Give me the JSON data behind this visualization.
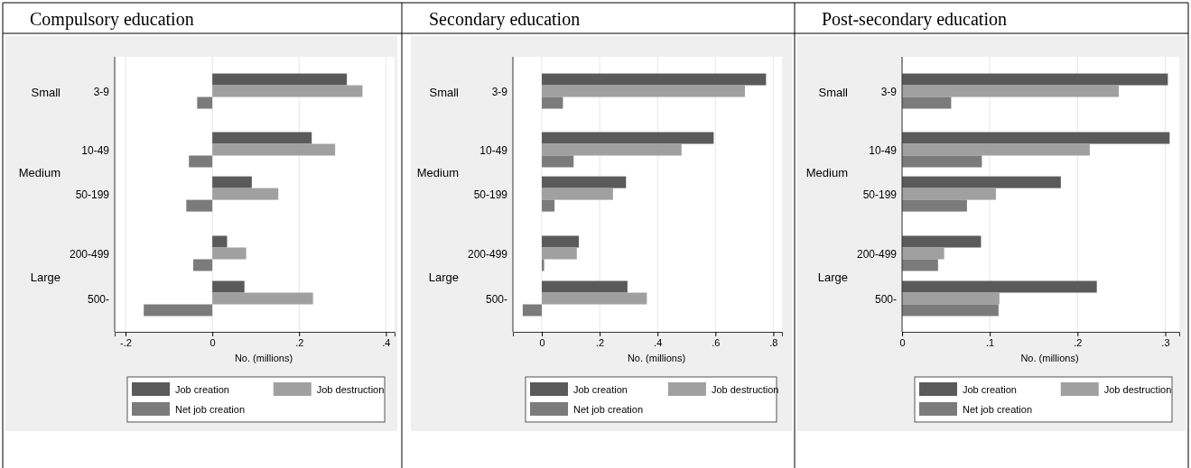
{
  "chart_data": [
    {
      "type": "bar",
      "orientation": "horizontal",
      "title": "Compulsory education",
      "xlabel": "No. (millions)",
      "categories": [
        "3-9",
        "10-49",
        "50-199",
        "200-499",
        "500-"
      ],
      "annotations": [
        "Small",
        "Medium",
        "Large"
      ],
      "xlim": [
        -0.225,
        0.42
      ],
      "xticks": [
        {
          "value": -0.2,
          "label": "-.2"
        },
        {
          "value": 0,
          "label": "0"
        },
        {
          "value": 0.2,
          "label": ".2"
        },
        {
          "value": 0.4,
          "label": ".4"
        }
      ],
      "grid": "x",
      "legend": "bottom",
      "series": [
        {
          "name": "Job creation",
          "color": "#5a5a5a",
          "values": [
            0.31,
            0.229,
            0.091,
            0.034,
            0.074
          ]
        },
        {
          "name": "Job destruction",
          "color": "#a0a0a0",
          "values": [
            0.346,
            0.283,
            0.152,
            0.078,
            0.232
          ]
        },
        {
          "name": "Net job creation",
          "color": "#7b7b7b",
          "values": [
            -0.035,
            -0.054,
            -0.06,
            -0.044,
            -0.158
          ]
        }
      ]
    },
    {
      "type": "bar",
      "orientation": "horizontal",
      "title": "Secondary education",
      "xlabel": "No. (millions)",
      "categories": [
        "3-9",
        "10-49",
        "50-199",
        "200-499",
        "500-"
      ],
      "annotations": [
        "Small",
        "Medium",
        "Large"
      ],
      "xlim": [
        -0.1,
        0.83
      ],
      "xticks": [
        {
          "value": 0,
          "label": "0"
        },
        {
          "value": 0.2,
          "label": ".2"
        },
        {
          "value": 0.4,
          "label": ".4"
        },
        {
          "value": 0.6,
          "label": ".6"
        },
        {
          "value": 0.8,
          "label": ".8"
        }
      ],
      "grid": "x",
      "legend": "bottom",
      "series": [
        {
          "name": "Job creation",
          "color": "#5a5a5a",
          "values": [
            0.775,
            0.594,
            0.291,
            0.128,
            0.296
          ]
        },
        {
          "name": "Job destruction",
          "color": "#a0a0a0",
          "values": [
            0.702,
            0.483,
            0.246,
            0.121,
            0.363
          ]
        },
        {
          "name": "Net job creation",
          "color": "#7b7b7b",
          "values": [
            0.073,
            0.11,
            0.044,
            0.008,
            -0.066
          ]
        }
      ]
    },
    {
      "type": "bar",
      "orientation": "horizontal",
      "title": "Post-secondary education",
      "xlabel": "No. (millions)",
      "categories": [
        "3-9",
        "10-49",
        "50-199",
        "200-499",
        "500-"
      ],
      "annotations": [
        "Small",
        "Medium",
        "Large"
      ],
      "xlim": [
        0,
        0.316
      ],
      "xticks": [
        {
          "value": 0,
          "label": "0"
        },
        {
          "value": 0.1,
          "label": ".1"
        },
        {
          "value": 0.2,
          "label": ".2"
        },
        {
          "value": 0.3,
          "label": ".3"
        }
      ],
      "grid": "x",
      "legend": "bottom",
      "series": [
        {
          "name": "Job creation",
          "color": "#5a5a5a",
          "values": [
            0.303,
            0.305,
            0.181,
            0.09,
            0.222
          ]
        },
        {
          "name": "Job destruction",
          "color": "#a0a0a0",
          "values": [
            0.247,
            0.214,
            0.107,
            0.048,
            0.111
          ]
        },
        {
          "name": "Net job creation",
          "color": "#7b7b7b",
          "values": [
            0.056,
            0.091,
            0.074,
            0.041,
            0.11
          ]
        }
      ]
    }
  ]
}
